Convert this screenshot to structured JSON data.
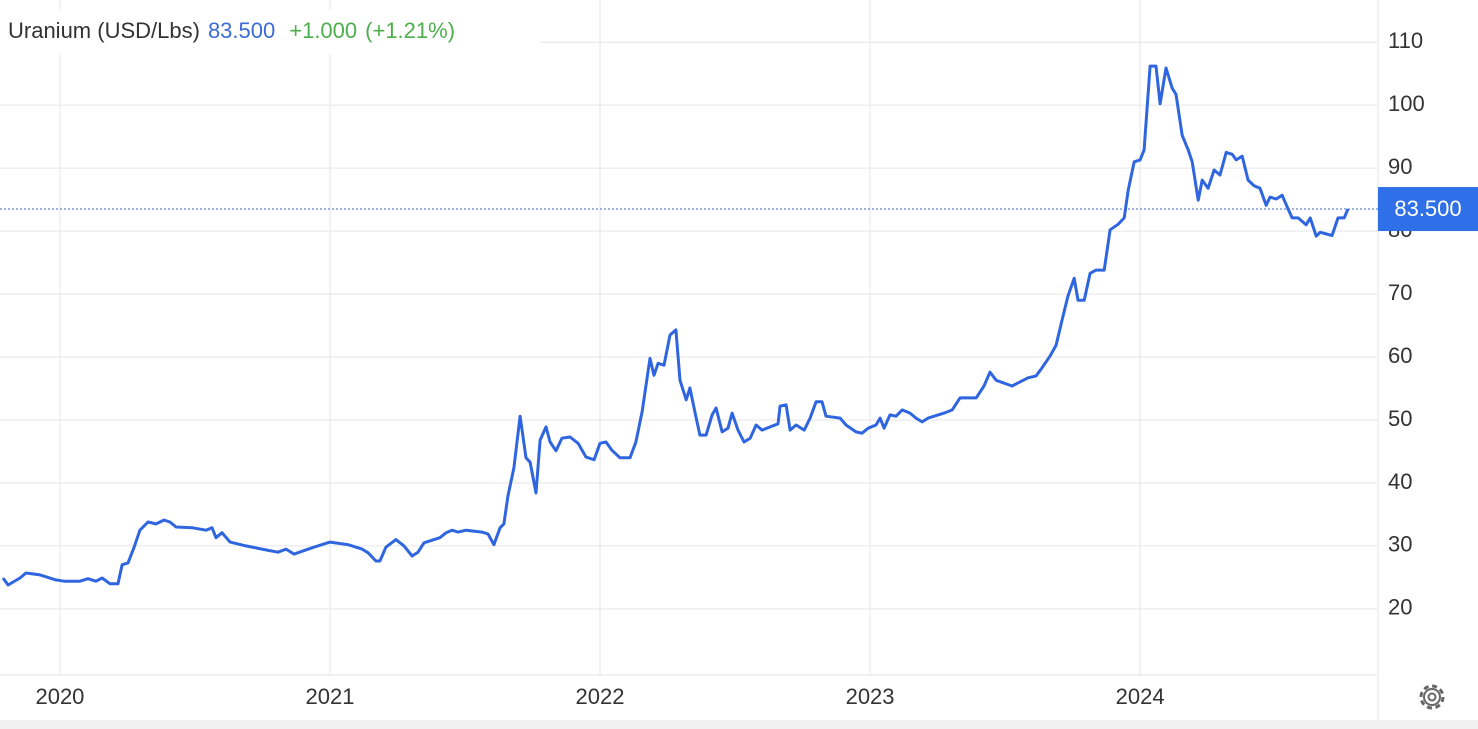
{
  "chart_data": {
    "type": "line",
    "title": "Uranium (USD/Lbs)",
    "price_label": "83.500",
    "change_label": "+1.000",
    "change_pct_label": "(+1.21%)",
    "x": [
      2019.789,
      2019.808,
      2019.852,
      2019.874,
      2019.926,
      2019.985,
      2020.015,
      2020.074,
      2020.104,
      2020.133,
      2020.156,
      2020.185,
      2020.215,
      2020.23,
      2020.252,
      2020.274,
      2020.296,
      2020.326,
      2020.356,
      2020.385,
      2020.407,
      2020.43,
      2020.489,
      2020.541,
      2020.563,
      2020.578,
      2020.6,
      2020.63,
      2020.689,
      2020.748,
      2020.807,
      2020.837,
      2020.867,
      2020.933,
      2021.0,
      2021.067,
      2021.119,
      2021.141,
      2021.17,
      2021.185,
      2021.207,
      2021.244,
      2021.274,
      2021.304,
      2021.326,
      2021.348,
      2021.407,
      2021.43,
      2021.452,
      2021.474,
      2021.504,
      2021.563,
      2021.585,
      2021.607,
      2021.63,
      2021.644,
      2021.659,
      2021.681,
      2021.704,
      2021.726,
      2021.741,
      2021.763,
      2021.778,
      2021.8,
      2021.815,
      2021.837,
      2021.859,
      2021.889,
      2021.919,
      2021.948,
      2021.978,
      2022.0,
      2022.022,
      2022.044,
      2022.074,
      2022.111,
      2022.133,
      2022.156,
      2022.185,
      2022.2,
      2022.215,
      2022.237,
      2022.259,
      2022.281,
      2022.296,
      2022.319,
      2022.333,
      2022.356,
      2022.37,
      2022.393,
      2022.415,
      2022.43,
      2022.452,
      2022.474,
      2022.489,
      2022.511,
      2022.533,
      2022.556,
      2022.578,
      2022.6,
      2022.659,
      2022.667,
      2022.689,
      2022.704,
      2022.726,
      2022.756,
      2022.778,
      2022.8,
      2022.822,
      2022.837,
      2022.889,
      2022.911,
      2022.948,
      2022.97,
      2022.993,
      2023.022,
      2023.037,
      2023.052,
      2023.074,
      2023.096,
      2023.119,
      2023.148,
      2023.17,
      2023.193,
      2023.215,
      2023.274,
      2023.304,
      2023.333,
      2023.393,
      2023.422,
      2023.444,
      2023.467,
      2023.526,
      2023.585,
      2023.615,
      2023.637,
      2023.667,
      2023.689,
      2023.711,
      2023.733,
      2023.756,
      2023.77,
      2023.793,
      2023.815,
      2023.837,
      2023.867,
      2023.889,
      2023.919,
      2023.941,
      2023.956,
      2023.978,
      2024.0,
      2024.015,
      2024.037,
      2024.059,
      2024.074,
      2024.096,
      2024.119,
      2024.133,
      2024.156,
      2024.178,
      2024.193,
      2024.215,
      2024.23,
      2024.252,
      2024.274,
      2024.296,
      2024.319,
      2024.341,
      2024.356,
      2024.378,
      2024.4,
      2024.422,
      2024.444,
      2024.467,
      2024.481,
      2024.504,
      2024.526,
      2024.548,
      2024.563,
      2024.585,
      2024.615,
      2024.63,
      2024.652,
      2024.667,
      2024.711,
      2024.733,
      2024.756,
      2024.77
    ],
    "series": [
      {
        "color": "#2f66e0",
        "values": [
          24.9,
          23.8,
          24.9,
          25.7,
          25.4,
          24.6,
          24.4,
          24.4,
          24.8,
          24.4,
          24.9,
          24.0,
          24.0,
          27.0,
          27.3,
          29.7,
          32.5,
          33.8,
          33.5,
          34.1,
          33.8,
          33.0,
          32.9,
          32.5,
          32.9,
          31.3,
          32.1,
          30.6,
          30.0,
          29.5,
          29.0,
          29.5,
          28.7,
          29.7,
          30.6,
          30.2,
          29.5,
          28.9,
          27.6,
          27.6,
          29.8,
          31.0,
          30.0,
          28.4,
          29.0,
          30.5,
          31.3,
          32.1,
          32.5,
          32.2,
          32.5,
          32.2,
          31.9,
          30.2,
          32.9,
          33.5,
          37.9,
          42.4,
          50.6,
          44.0,
          43.3,
          38.4,
          46.8,
          48.9,
          46.5,
          45.1,
          47.1,
          47.3,
          46.3,
          44.1,
          43.7,
          46.3,
          46.5,
          45.2,
          44.0,
          44.0,
          46.5,
          51.3,
          59.8,
          57.1,
          59.0,
          58.7,
          63.5,
          64.3,
          56.3,
          53.2,
          55.1,
          50.3,
          47.6,
          47.6,
          50.8,
          51.9,
          48.1,
          48.7,
          51.1,
          48.4,
          46.5,
          47.1,
          49.2,
          48.4,
          49.4,
          52.2,
          52.4,
          48.4,
          49.2,
          48.4,
          50.3,
          52.9,
          52.9,
          50.6,
          50.3,
          49.2,
          48.1,
          47.9,
          48.7,
          49.2,
          50.3,
          48.7,
          50.8,
          50.6,
          51.6,
          51.1,
          50.3,
          49.7,
          50.3,
          51.1,
          51.6,
          53.5,
          53.5,
          55.4,
          57.6,
          56.3,
          55.4,
          56.7,
          57.0,
          58.3,
          60.2,
          61.9,
          65.9,
          69.7,
          72.5,
          69.0,
          69.0,
          73.3,
          73.8,
          73.8,
          80.2,
          81.1,
          82.1,
          86.5,
          91.0,
          91.3,
          92.9,
          106.2,
          106.2,
          100.2,
          105.9,
          102.7,
          101.7,
          95.2,
          92.9,
          91.0,
          84.9,
          88.1,
          86.8,
          89.7,
          88.9,
          92.5,
          92.2,
          91.3,
          91.9,
          88.1,
          87.2,
          86.8,
          84.1,
          85.4,
          85.1,
          85.7,
          83.5,
          82.1,
          82.1,
          81.0,
          82.1,
          79.2,
          79.8,
          79.3,
          82.1,
          82.1,
          83.5
        ]
      }
    ],
    "xlim": [
      2019.778,
      2024.881
    ],
    "xticks": [
      2020,
      2021,
      2022,
      2023,
      2024
    ],
    "ylim": [
      9.5,
      116.7
    ],
    "yticks": [
      20,
      30,
      40,
      50,
      60,
      70,
      80,
      90,
      100,
      110
    ],
    "grid": true
  }
}
